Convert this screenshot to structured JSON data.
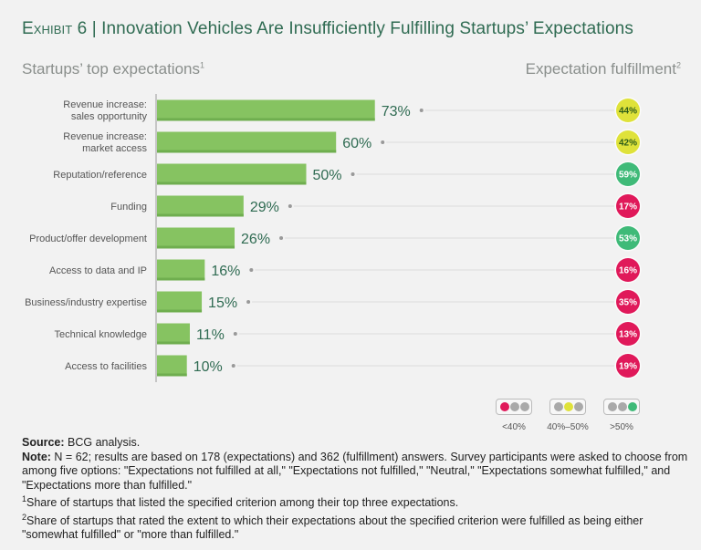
{
  "title_prefix": "Exhibit 6",
  "title_sep": " | ",
  "title_text": "Innovation Vehicles Are Insufficiently Fulfilling Startups’ Expectations",
  "left_header": "Startups’ top expectations",
  "left_header_sup": "1",
  "right_header": "Expectation fulfillment",
  "right_header_sup": "2",
  "colors": {
    "bar": "#86c361",
    "bar_shadow": "#6fae4f",
    "red": "#e0195a",
    "yellow": "#dfe23a",
    "green": "#3fba78",
    "gray_dot": "#a9a9a9"
  },
  "chart_data": {
    "type": "bar",
    "orientation": "horizontal",
    "title": "Innovation Vehicles Are Insufficiently Fulfilling Startups’ Expectations",
    "xlabel": "",
    "ylabel": "",
    "xlim": [
      0,
      100
    ],
    "grid": false,
    "categories": [
      [
        "Revenue increase:",
        "sales opportunity"
      ],
      [
        "Revenue increase:",
        "market access"
      ],
      [
        "Reputation/reference"
      ],
      [
        "Funding"
      ],
      [
        "Product/offer development"
      ],
      [
        "Access to data and IP"
      ],
      [
        "Business/industry expertise"
      ],
      [
        "Technical knowledge"
      ],
      [
        "Access to facilities"
      ]
    ],
    "series": [
      {
        "name": "Startups’ top expectations",
        "values": [
          73,
          60,
          50,
          29,
          26,
          16,
          15,
          11,
          10
        ],
        "labels": [
          "73%",
          "60%",
          "50%",
          "29%",
          "26%",
          "16%",
          "15%",
          "11%",
          "10%"
        ]
      },
      {
        "name": "Expectation fulfillment",
        "values": [
          44,
          42,
          59,
          17,
          53,
          16,
          35,
          13,
          19
        ],
        "labels": [
          "44%",
          "42%",
          "59%",
          "17%",
          "53%",
          "16%",
          "35%",
          "13%",
          "19%"
        ]
      }
    ],
    "legend": {
      "placement": "bottom-right",
      "items": [
        {
          "label": "<40%",
          "active": "red"
        },
        {
          "label": "40%–50%",
          "active": "yellow"
        },
        {
          "label": ">50%",
          "active": "green"
        }
      ]
    }
  },
  "footer": {
    "source_label": "Source:",
    "source_text": " BCG analysis.",
    "note_label": "Note:",
    "note_text": " N = 62; results are based on 178 (expectations) and 362 (fulfillment) answers. Survey participants were asked to choose from among five options: \"Expectations not fulfilled at all,\" \"Expectations not fulfilled,\" \"Neutral,\" \"Expectations somewhat fulfilled,\" and \"Expectations more than fulfilled.\"",
    "fn1_mark": "1",
    "fn1_text": "Share of startups that listed the specified criterion among their top three expectations.",
    "fn2_mark": "2",
    "fn2_text": "Share of startups that rated the extent to which their expectations about the specified criterion were fulfilled as being either \"somewhat fulfilled\" or \"more than fulfilled.\""
  }
}
